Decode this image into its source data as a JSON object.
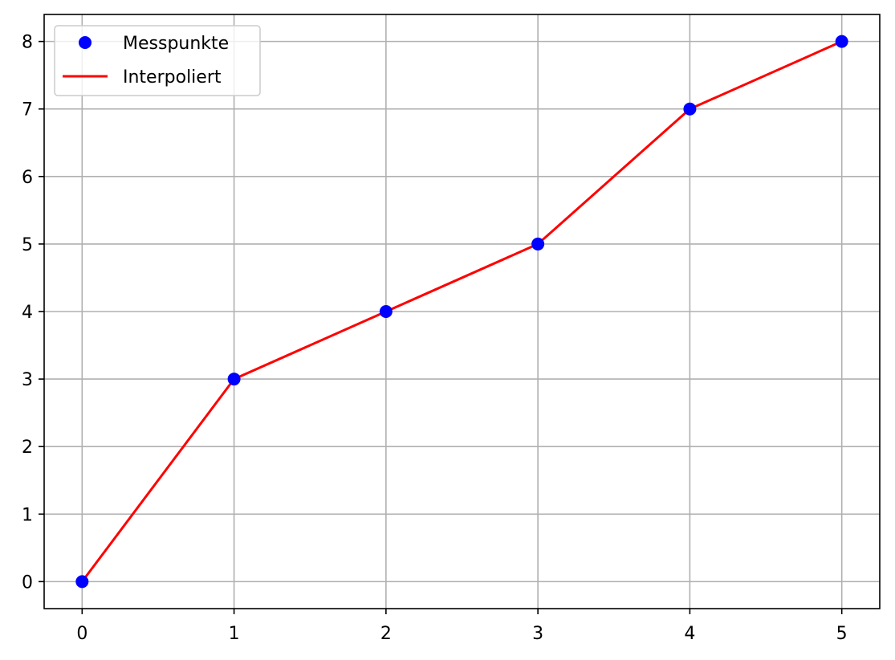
{
  "chart_data": {
    "type": "line",
    "x": [
      0,
      1,
      2,
      3,
      4,
      5
    ],
    "series": [
      {
        "name": "Messpunkte",
        "kind": "scatter",
        "values": [
          0,
          3,
          4,
          5,
          7,
          8
        ],
        "color": "#0000ff"
      },
      {
        "name": "Interpoliert",
        "kind": "line",
        "values": [
          0,
          3,
          4,
          5,
          7,
          8
        ],
        "color": "#ff0000"
      }
    ],
    "x_ticks": [
      "0",
      "1",
      "2",
      "3",
      "4",
      "5"
    ],
    "y_ticks": [
      "0",
      "1",
      "2",
      "3",
      "4",
      "5",
      "6",
      "7",
      "8"
    ],
    "xlim": [
      -0.25,
      5.25
    ],
    "ylim": [
      -0.4,
      8.4
    ],
    "grid": true,
    "legend_position": "top-left",
    "title": "",
    "xlabel": "",
    "ylabel": ""
  }
}
